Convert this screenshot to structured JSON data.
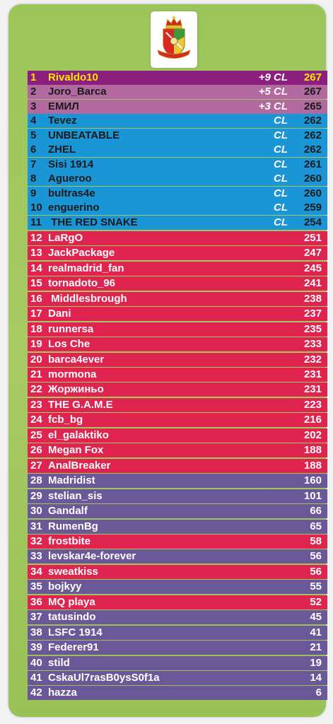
{
  "colors": {
    "first": "#8c1f7e",
    "promoted": "#b169a0",
    "champions_league": "#1a95d6",
    "mid_table": "#e02450",
    "lower_table": "#6a5898",
    "background": "#a2c860"
  },
  "logo": {
    "icon": "crest-icon"
  },
  "standings": [
    {
      "rank": "1",
      "name": "Rivaldo10",
      "bonus": "+9 CL",
      "points": "267",
      "tier": "first"
    },
    {
      "rank": "2",
      "name": "Joro_Barca",
      "bonus": "+5 CL",
      "points": "267",
      "tier": "promoted"
    },
    {
      "rank": "3",
      "name": "ЕМИЛ",
      "bonus": "+3 CL",
      "points": "265",
      "tier": "promoted"
    },
    {
      "rank": "4",
      "name": "Tevez",
      "bonus": "CL",
      "points": "262",
      "tier": "champions_league"
    },
    {
      "rank": "5",
      "name": "UNBEATABLE",
      "bonus": "CL",
      "points": "262",
      "tier": "champions_league"
    },
    {
      "rank": "6",
      "name": "ZHEL",
      "bonus": "CL",
      "points": "262",
      "tier": "champions_league"
    },
    {
      "rank": "7",
      "name": "Sisi 1914",
      "bonus": "CL",
      "points": "261",
      "tier": "champions_league"
    },
    {
      "rank": "8",
      "name": "Agueroo",
      "bonus": "CL",
      "points": "260",
      "tier": "champions_league"
    },
    {
      "rank": "9",
      "name": "bultras4e",
      "bonus": "CL",
      "points": "260",
      "tier": "champions_league"
    },
    {
      "rank": "10",
      "name": "enguerino",
      "bonus": "CL",
      "points": "259",
      "tier": "champions_league"
    },
    {
      "rank": "11",
      "name": " THE RED SNAKE",
      "bonus": "CL",
      "points": "254",
      "tier": "champions_league"
    },
    {
      "rank": "12",
      "name": "LaRgO",
      "bonus": "",
      "points": "251",
      "tier": "mid_table"
    },
    {
      "rank": "13",
      "name": "JackPackage",
      "bonus": "",
      "points": "247",
      "tier": "mid_table"
    },
    {
      "rank": "14",
      "name": "realmadrid_fan",
      "bonus": "",
      "points": "245",
      "tier": "mid_table"
    },
    {
      "rank": "15",
      "name": "tornadoto_96",
      "bonus": "",
      "points": "241",
      "tier": "mid_table"
    },
    {
      "rank": "16",
      "name": " Middlesbrough",
      "bonus": "",
      "points": "238",
      "tier": "mid_table"
    },
    {
      "rank": "17",
      "name": "Dani",
      "bonus": "",
      "points": "237",
      "tier": "mid_table"
    },
    {
      "rank": "18",
      "name": "runnersa",
      "bonus": "",
      "points": "235",
      "tier": "mid_table"
    },
    {
      "rank": "19",
      "name": "Los Che",
      "bonus": "",
      "points": "233",
      "tier": "mid_table"
    },
    {
      "rank": "20",
      "name": "barca4ever",
      "bonus": "",
      "points": "232",
      "tier": "mid_table"
    },
    {
      "rank": "21",
      "name": "mormona",
      "bonus": "",
      "points": "231",
      "tier": "mid_table"
    },
    {
      "rank": "22",
      "name": "Жоржиньо",
      "bonus": "",
      "points": "231",
      "tier": "mid_table"
    },
    {
      "rank": "23",
      "name": "THE G.A.M.E",
      "bonus": "",
      "points": "223",
      "tier": "mid_table"
    },
    {
      "rank": "24",
      "name": "fcb_bg",
      "bonus": "",
      "points": "216",
      "tier": "mid_table"
    },
    {
      "rank": "25",
      "name": "el_galaktiko",
      "bonus": "",
      "points": "202",
      "tier": "mid_table"
    },
    {
      "rank": "26",
      "name": "Megan Fox",
      "bonus": "",
      "points": "188",
      "tier": "mid_table"
    },
    {
      "rank": "27",
      "name": "AnalBreaker",
      "bonus": "",
      "points": "188",
      "tier": "mid_table"
    },
    {
      "rank": "28",
      "name": "Madridist",
      "bonus": "",
      "points": "160",
      "tier": "lower_table"
    },
    {
      "rank": "29",
      "name": "stelian_sis",
      "bonus": "",
      "points": "101",
      "tier": "lower_table"
    },
    {
      "rank": "30",
      "name": "Gandalf",
      "bonus": "",
      "points": "66",
      "tier": "lower_table"
    },
    {
      "rank": "31",
      "name": "RumenBg",
      "bonus": "",
      "points": "65",
      "tier": "lower_table"
    },
    {
      "rank": "32",
      "name": "frostbite",
      "bonus": "",
      "points": "58",
      "tier": "mid_table"
    },
    {
      "rank": "33",
      "name": "levskar4e-forever",
      "bonus": "",
      "points": "56",
      "tier": "lower_table"
    },
    {
      "rank": "34",
      "name": "sweatkiss",
      "bonus": "",
      "points": "56",
      "tier": "mid_table"
    },
    {
      "rank": "35",
      "name": "bojkyy",
      "bonus": "",
      "points": "55",
      "tier": "lower_table"
    },
    {
      "rank": "36",
      "name": "MQ playa",
      "bonus": "",
      "points": "52",
      "tier": "mid_table"
    },
    {
      "rank": "37",
      "name": "tatusindo",
      "bonus": "",
      "points": "45",
      "tier": "lower_table"
    },
    {
      "rank": "38",
      "name": "LSFC 1914",
      "bonus": "",
      "points": "41",
      "tier": "lower_table"
    },
    {
      "rank": "39",
      "name": "Federer91",
      "bonus": "",
      "points": "21",
      "tier": "lower_table"
    },
    {
      "rank": "40",
      "name": "stild",
      "bonus": "",
      "points": "19",
      "tier": "lower_table"
    },
    {
      "rank": "41",
      "name": "CskaUl7rasB0ysS0f1a",
      "bonus": "",
      "points": "14",
      "tier": "lower_table"
    },
    {
      "rank": "42",
      "name": "hazza",
      "bonus": "",
      "points": "6",
      "tier": "lower_table"
    }
  ]
}
